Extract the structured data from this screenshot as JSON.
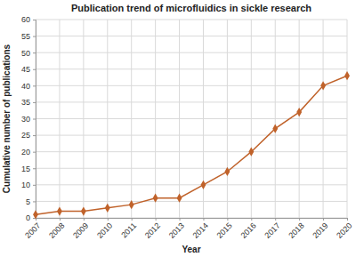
{
  "chart_data": {
    "type": "line",
    "title": "Publication trend of microfluidics in sickle research",
    "x_label": "Year",
    "y_label": "Cumulative number of publications",
    "x": [
      2007,
      2008,
      2009,
      2010,
      2011,
      2012,
      2013,
      2014,
      2015,
      2016,
      2017,
      2018,
      2019,
      2020
    ],
    "values": [
      1,
      2,
      2,
      3,
      4,
      6,
      6,
      10,
      14,
      20,
      27,
      32,
      40,
      43
    ],
    "color": "#c0622a",
    "marker": "diamond",
    "xlim": [
      2007,
      2020
    ],
    "xticks": [
      2007,
      2008,
      2009,
      2010,
      2011,
      2012,
      2013,
      2014,
      2015,
      2016,
      2017,
      2018,
      2019,
      2020
    ],
    "ylim": [
      0,
      60
    ],
    "yticks": [
      0,
      5,
      10,
      15,
      20,
      25,
      30,
      35,
      40,
      45,
      50,
      55,
      60
    ],
    "grid": true
  }
}
